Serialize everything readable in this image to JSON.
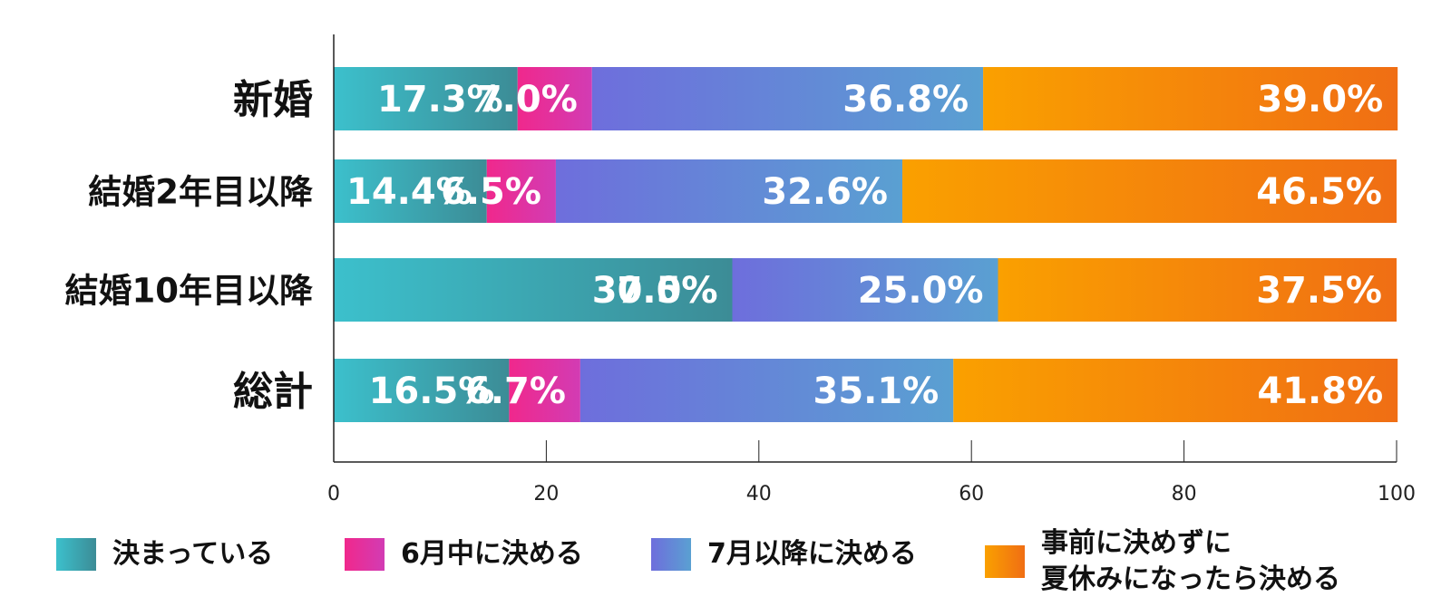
{
  "chart_data": {
    "type": "bar",
    "orientation": "horizontal",
    "stacked": true,
    "categories": [
      "新婚",
      "結婚2年目以降",
      "結婚10年目以降",
      "総計"
    ],
    "series": [
      {
        "name": "決まっている",
        "values": [
          17.3,
          14.4,
          37.5,
          16.5
        ],
        "labels": [
          "17.3%",
          "14.4%",
          "37.5%",
          "16.5%"
        ],
        "color_start": "#3cc0cc",
        "color_end": "#3c8c96"
      },
      {
        "name": "6月中に決める",
        "values": [
          7.0,
          6.5,
          0.0,
          6.7
        ],
        "labels": [
          "7.0%",
          "6.5%",
          "0.0%",
          "6.7%"
        ],
        "color_start": "#f0288c",
        "color_end": "#d23cb4"
      },
      {
        "name": "7月以降に決める",
        "values": [
          36.8,
          32.6,
          25.0,
          35.1
        ],
        "labels": [
          "36.8%",
          "32.6%",
          "25.0%",
          "35.1%"
        ],
        "color_start": "#6e6edc",
        "color_end": "#5aa0d2"
      },
      {
        "name": "事前に決めずに\n夏休みになったら決める",
        "legend_lines": [
          "事前に決めずに",
          "夏休みになったら決める"
        ],
        "values": [
          39.0,
          46.5,
          37.5,
          41.8
        ],
        "labels": [
          "39.0%",
          "46.5%",
          "37.5%",
          "41.8%"
        ],
        "color_start": "#faa000",
        "color_end": "#f06e14"
      }
    ],
    "xlim": [
      0,
      100
    ],
    "x_ticks": [
      0,
      20,
      40,
      60,
      80,
      100
    ],
    "x_tick_labels": [
      "0",
      "20",
      "40",
      "60",
      "80",
      "100"
    ],
    "grid": false,
    "legend_position": "bottom"
  }
}
